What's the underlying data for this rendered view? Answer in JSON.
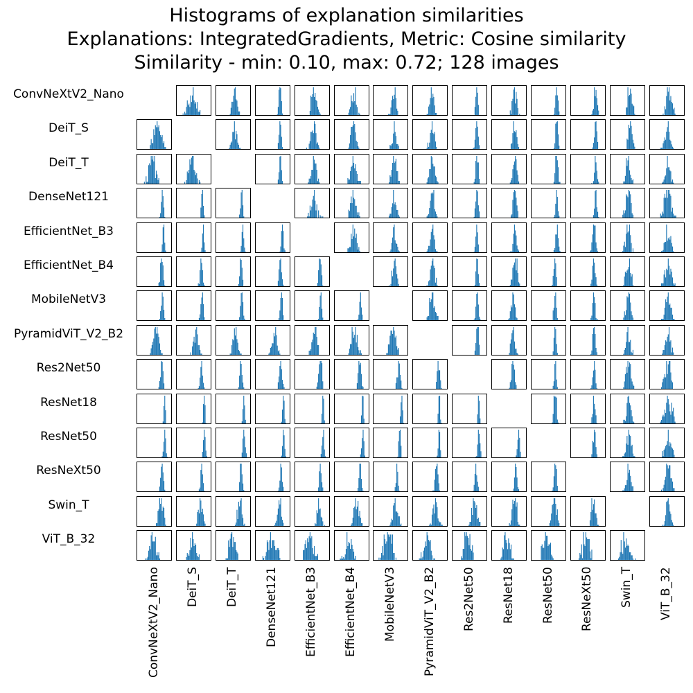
{
  "title": {
    "line1": "Histograms of explanation similarities",
    "line2": "Explanations: IntegratedGradients, Metric: Cosine similarity",
    "line3": "Similarity - min: 0.10, max: 0.72; 128 images"
  },
  "colors": {
    "bar": "#1f77b4",
    "frame": "#000000"
  },
  "chart_data": {
    "type": "histogram-matrix",
    "x_range": [
      0.1,
      0.72
    ],
    "image_count": 128,
    "models": [
      "ConvNeXtV2_Nano",
      "DeiT_S",
      "DeiT_T",
      "DenseNet121",
      "EfficientNet_B3",
      "EfficientNet_B4",
      "MobileNetV3",
      "PyramidViT_V2_B2",
      "Res2Net50",
      "ResNet18",
      "ResNet50",
      "ResNeXt50",
      "Swin_T",
      "ViT_B_32"
    ],
    "diagonal": "empty"
  }
}
